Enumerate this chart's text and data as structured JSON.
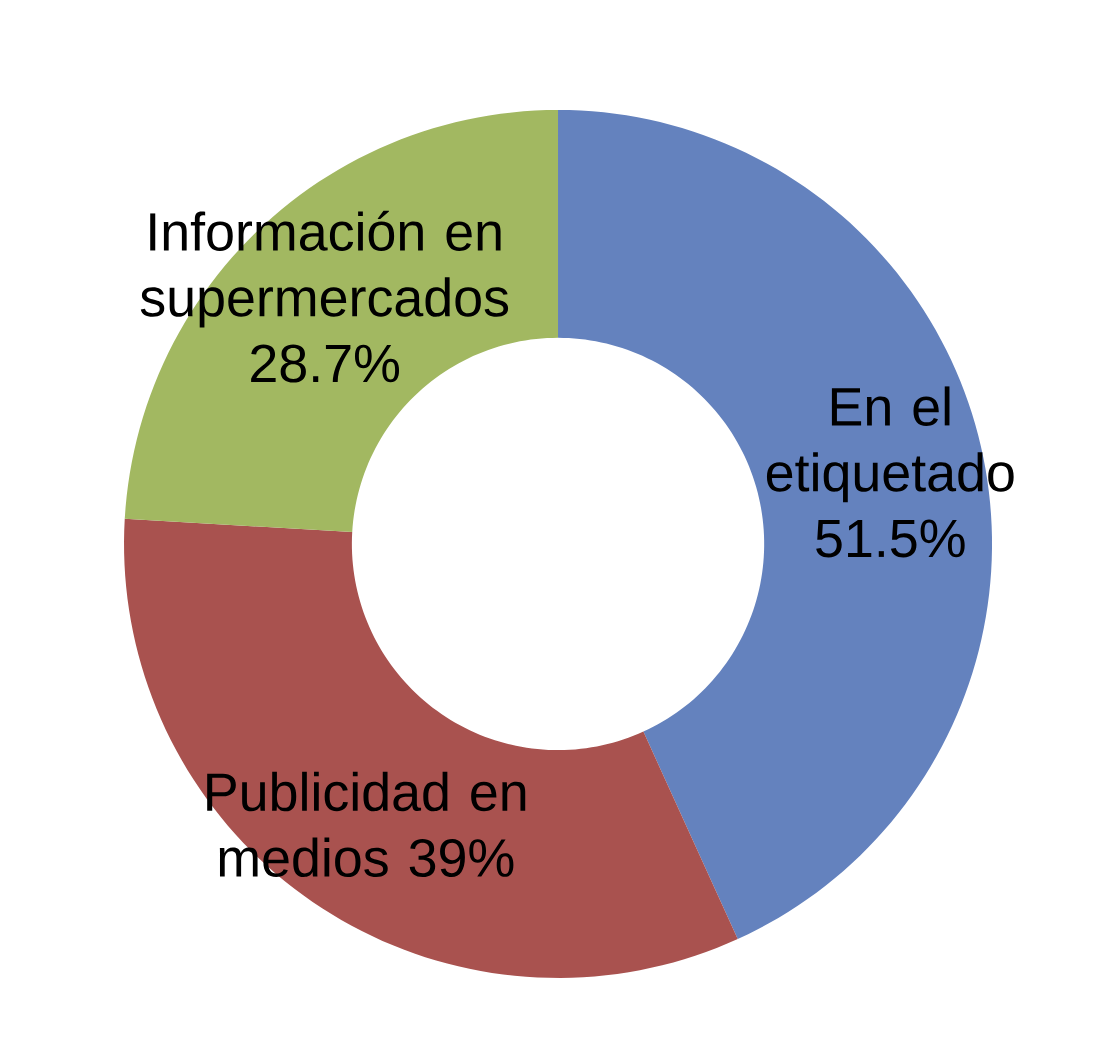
{
  "chart_data": {
    "type": "donut",
    "categories": [
      "En el etiquetado",
      "Publicidad en medios",
      "Información en supermercados"
    ],
    "values": [
      51.5,
      39,
      28.7
    ],
    "value_labels": [
      "51.5%",
      "39%",
      "28.7%"
    ],
    "colors": [
      "#6482be",
      "#a9524f",
      "#a2b861"
    ]
  }
}
